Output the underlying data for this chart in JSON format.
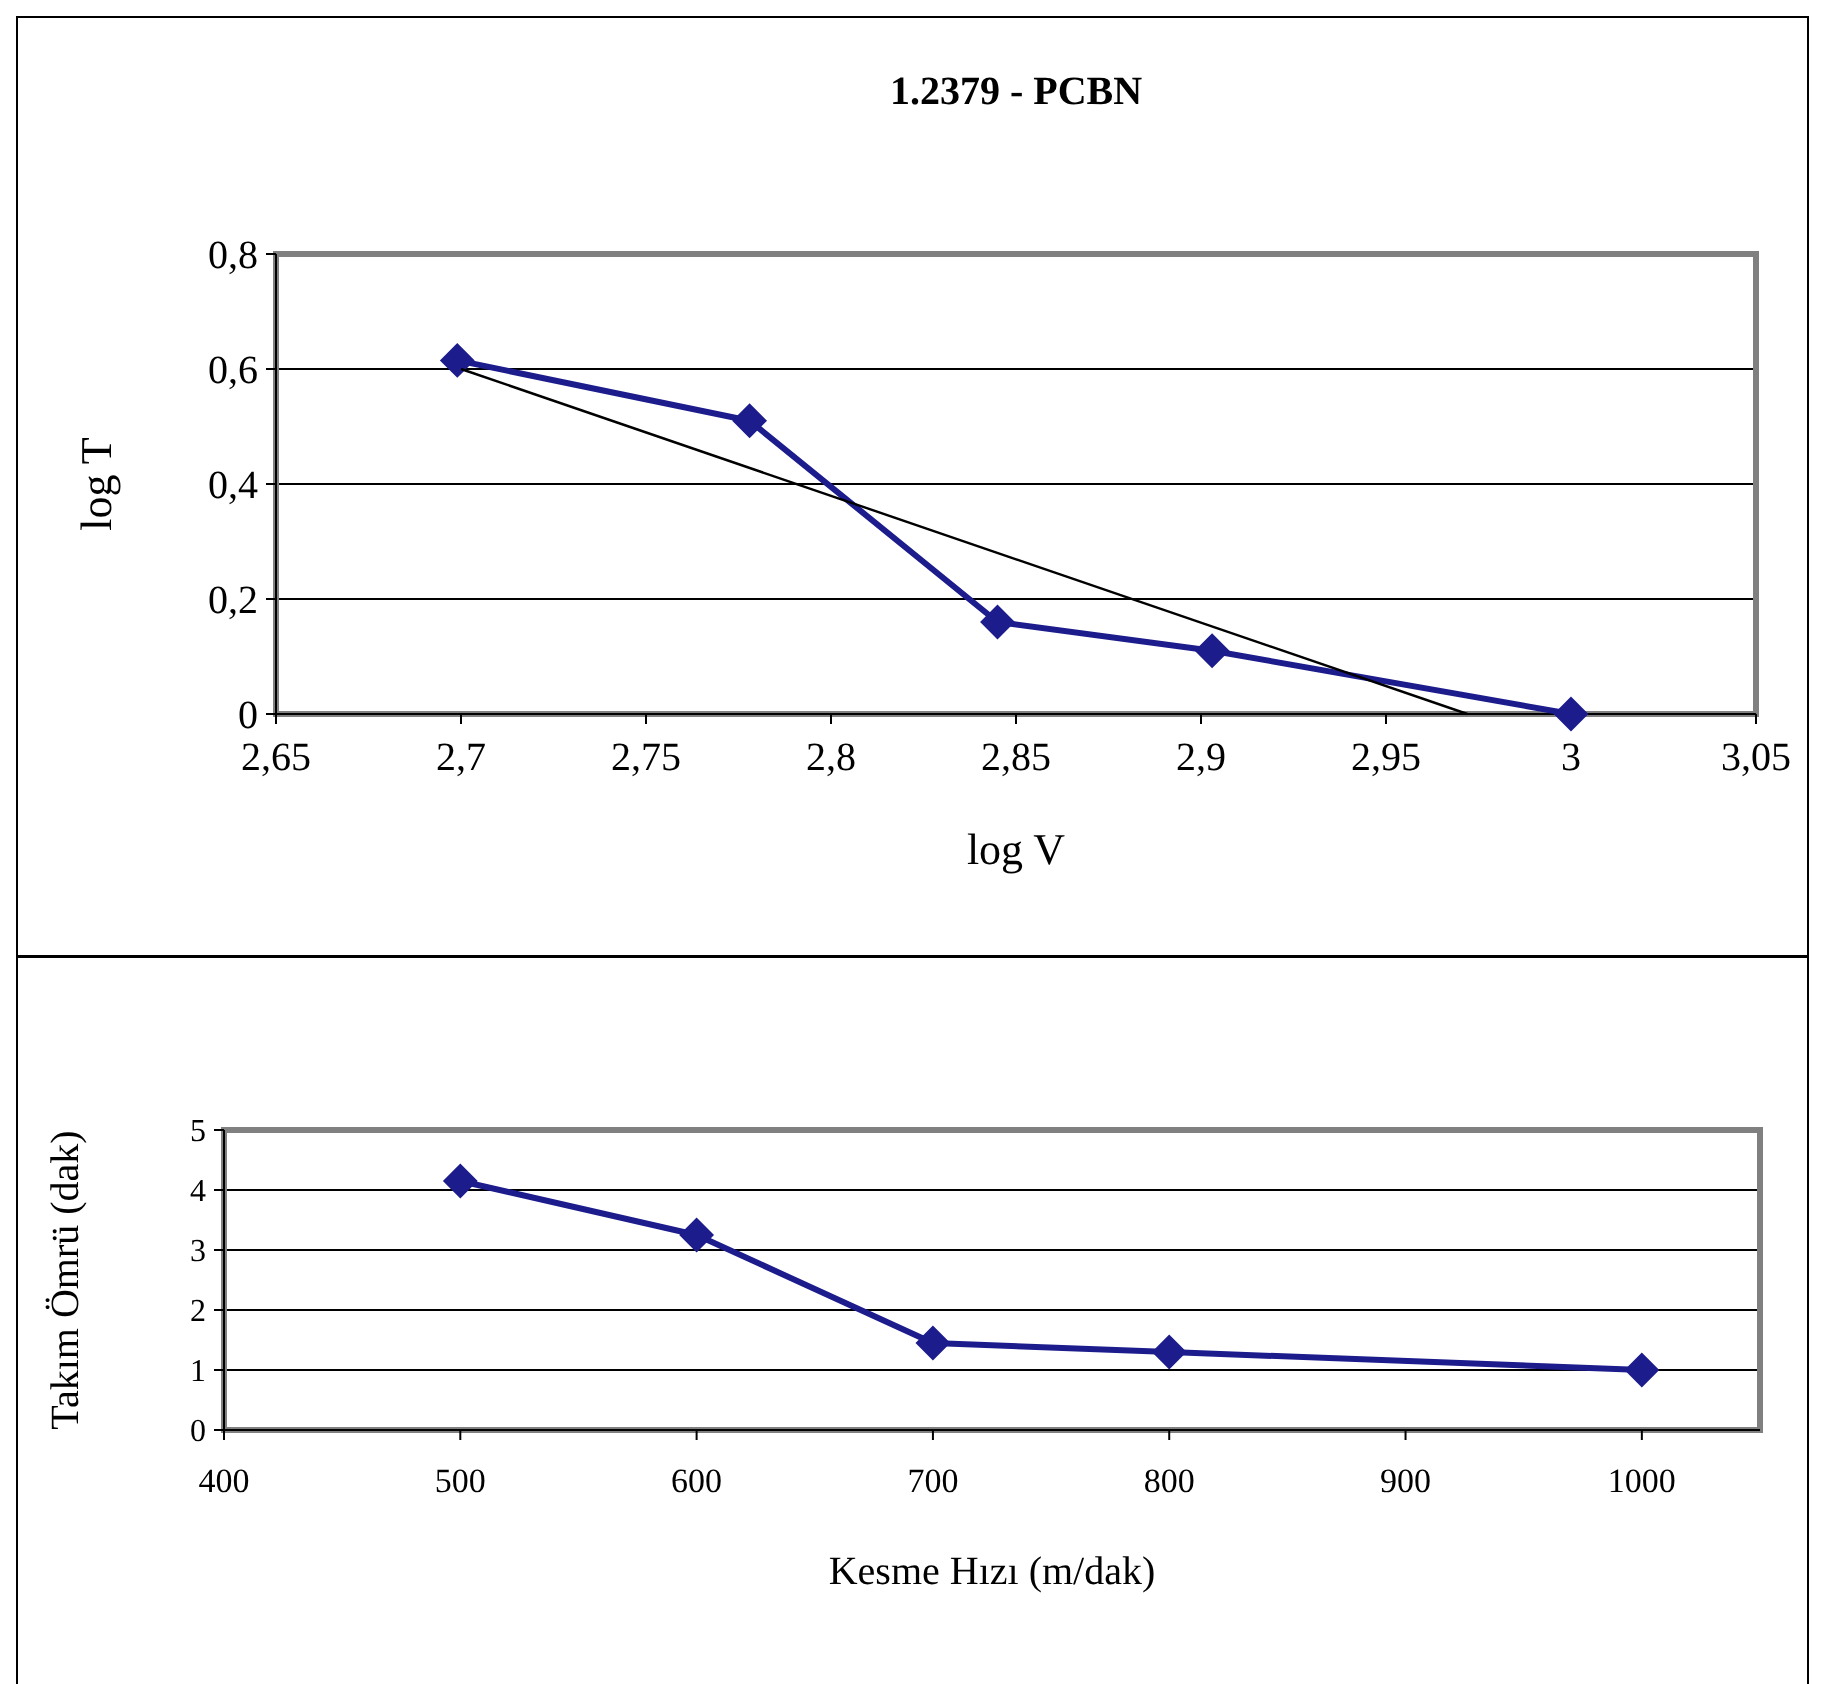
{
  "chart_data": [
    {
      "type": "line",
      "title": "1.2379 - PCBN",
      "xlabel": "log V",
      "ylabel": "log T",
      "x": [
        2.699,
        2.778,
        2.845,
        2.903,
        3
      ],
      "xlim": [
        2.65,
        3.05
      ],
      "ylim": [
        0,
        0.8
      ],
      "xticks": [
        {
          "value": 2.65,
          "label": "2,65"
        },
        {
          "value": 2.7,
          "label": "2,7"
        },
        {
          "value": 2.75,
          "label": "2,75"
        },
        {
          "value": 2.8,
          "label": "2,8"
        },
        {
          "value": 2.85,
          "label": "2,85"
        },
        {
          "value": 2.9,
          "label": "2,9"
        },
        {
          "value": 2.95,
          "label": "2,95"
        },
        3,
        {
          "value": 3.05,
          "label": "3,05"
        }
      ],
      "yticks": [
        0,
        {
          "value": 0.2,
          "label": "0,2"
        },
        {
          "value": 0.4,
          "label": "0,4"
        },
        {
          "value": 0.6,
          "label": "0,6"
        },
        {
          "value": 0.8,
          "label": "0,8"
        }
      ],
      "grid": "y",
      "marker": "diamond",
      "line_style": "solid",
      "series": [
        {
          "color": "#1c1c8c",
          "values": [
            0.615,
            0.51,
            0.16,
            0.11,
            0
          ]
        },
        {
          "type": "line",
          "color": "#000000",
          "marker": "none",
          "x": [
            2.7,
            2.972
          ],
          "values": [
            0.6,
            0
          ]
        }
      ]
    },
    {
      "type": "line",
      "xlabel": "Kesme Hızı (m/dak)",
      "ylabel": "Takım Ömrü  (dak)",
      "x": [
        500,
        600,
        700,
        800,
        1000
      ],
      "xlim": [
        400,
        1050
      ],
      "ylim": [
        0,
        5
      ],
      "xticks": [
        400,
        500,
        600,
        700,
        800,
        900,
        1000
      ],
      "yticks": [
        0,
        1,
        2,
        3,
        4,
        5
      ],
      "grid": "y",
      "marker": "diamond",
      "line_style": "solid",
      "series": [
        {
          "color": "#1c1c8c",
          "values": [
            4.15,
            3.25,
            1.45,
            1.3,
            1.0
          ]
        }
      ]
    }
  ]
}
